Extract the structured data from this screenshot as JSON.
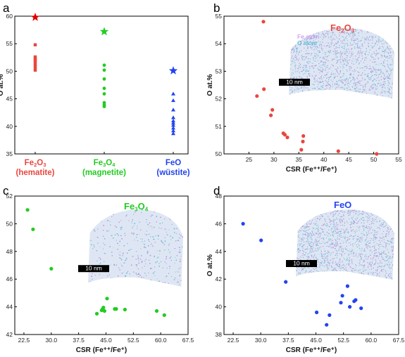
{
  "panels": {
    "a": {
      "label": "a"
    },
    "b": {
      "label": "b"
    },
    "c": {
      "label": "c"
    },
    "d": {
      "label": "d"
    }
  },
  "colors": {
    "red": "#e8473f",
    "green": "#22cc22",
    "blue": "#2244ee",
    "star_red": "#dd0000"
  },
  "chart_data": [
    {
      "panel": "a",
      "type": "scatter",
      "ylabel": "O at.%",
      "ylim": [
        35,
        60
      ],
      "yticks": [
        35,
        40,
        45,
        50,
        55,
        60
      ],
      "categories": [
        {
          "formula": "Fe",
          "sub": "2",
          "formula2": "O",
          "sub2": "3",
          "name": "(hematite)",
          "color": "#e8473f"
        },
        {
          "formula": "Fe",
          "sub": "3",
          "formula2": "O",
          "sub2": "4",
          "name": "(magnetite)",
          "color": "#22cc22"
        },
        {
          "formula": "FeO",
          "sub": "",
          "formula2": "",
          "sub2": "",
          "name": "(wüstite)",
          "color": "#2244ee"
        }
      ],
      "series": [
        {
          "category": 0,
          "marker": "square",
          "values": [
            54.8,
            52.6,
            52.3,
            52.0,
            51.7,
            51.3,
            51.0,
            50.6,
            50.2
          ]
        },
        {
          "category": 1,
          "marker": "circle",
          "values": [
            51.1,
            50.2,
            48.6,
            46.9,
            45.9,
            44.3,
            43.9,
            43.6
          ]
        },
        {
          "category": 2,
          "marker": "triangle",
          "values": [
            45.9,
            44.7,
            43.0,
            41.6,
            41.0,
            40.6,
            40.2,
            39.7,
            39.2,
            38.7
          ]
        },
        {
          "category": 0,
          "marker": "star",
          "values": [
            59.8
          ]
        },
        {
          "category": 1,
          "marker": "star",
          "values": [
            57.2
          ]
        },
        {
          "category": 2,
          "marker": "star",
          "values": [
            50.1
          ]
        }
      ]
    },
    {
      "panel": "b",
      "type": "scatter",
      "xlabel": "CSR (Fe⁺⁺/Fe⁺)",
      "ylabel": "O at.%",
      "xlim": [
        20,
        55
      ],
      "ylim": [
        50,
        55
      ],
      "xticks": [
        25,
        30,
        35,
        40,
        45,
        50,
        55
      ],
      "yticks": [
        50,
        51,
        52,
        53,
        54,
        55
      ],
      "formula": [
        "Fe",
        "2",
        "O",
        "3"
      ],
      "inset": {
        "legend": [
          "Fe atom",
          "O atom"
        ],
        "scalebar": "10 nm"
      },
      "points": [
        [
          27.9,
          54.8
        ],
        [
          26.6,
          52.1
        ],
        [
          28.0,
          52.35
        ],
        [
          29.7,
          51.6
        ],
        [
          29.4,
          51.4
        ],
        [
          31.9,
          50.75
        ],
        [
          32.2,
          50.7
        ],
        [
          32.7,
          50.6
        ],
        [
          35.9,
          50.65
        ],
        [
          35.8,
          50.45
        ],
        [
          35.5,
          50.15
        ],
        [
          42.9,
          50.1
        ],
        [
          50.6,
          50.0
        ]
      ]
    },
    {
      "panel": "c",
      "type": "scatter",
      "xlabel": "CSR (Fe⁺⁺/Fe⁺)",
      "xlim": [
        20,
        67.5
      ],
      "ylim": [
        42,
        52
      ],
      "xticks": [
        22.5,
        30.0,
        37.5,
        45.0,
        52.5,
        60.0,
        67.5
      ],
      "yticks": [
        42,
        44,
        46,
        48,
        50,
        52
      ],
      "formula": [
        "Fe",
        "3",
        "O",
        "4"
      ],
      "inset": {
        "scalebar": "10 nm"
      },
      "points": [
        [
          23.5,
          51.0
        ],
        [
          25.0,
          49.6
        ],
        [
          30.0,
          46.75
        ],
        [
          42.5,
          43.5
        ],
        [
          43.8,
          43.75
        ],
        [
          44.1,
          43.85
        ],
        [
          44.3,
          43.95
        ],
        [
          44.6,
          43.7
        ],
        [
          45.3,
          44.6
        ],
        [
          47.4,
          43.85
        ],
        [
          47.8,
          43.85
        ],
        [
          50.2,
          43.8
        ],
        [
          58.9,
          43.7
        ],
        [
          61.0,
          43.4
        ]
      ]
    },
    {
      "panel": "d",
      "type": "scatter",
      "xlabel": "CSR (Fe⁺⁺/Fe⁺)",
      "ylabel": "O at.%",
      "xlim": [
        20,
        67.5
      ],
      "ylim": [
        38,
        48
      ],
      "xticks": [
        22.5,
        30.0,
        37.5,
        45.0,
        52.5,
        60.0,
        67.5
      ],
      "yticks": [
        38,
        40,
        42,
        44,
        46,
        48
      ],
      "formula": [
        "FeO",
        "",
        "",
        ""
      ],
      "inset": {
        "scalebar": "10 nm"
      },
      "points": [
        [
          25.2,
          46.0
        ],
        [
          30.1,
          44.8
        ],
        [
          36.8,
          41.8
        ],
        [
          45.2,
          39.6
        ],
        [
          47.9,
          38.7
        ],
        [
          48.7,
          39.4
        ],
        [
          51.8,
          40.3
        ],
        [
          52.2,
          40.8
        ],
        [
          53.6,
          41.5
        ],
        [
          55.4,
          40.4
        ],
        [
          55.8,
          40.5
        ],
        [
          54.2,
          40.0
        ],
        [
          57.3,
          39.9
        ]
      ]
    }
  ]
}
